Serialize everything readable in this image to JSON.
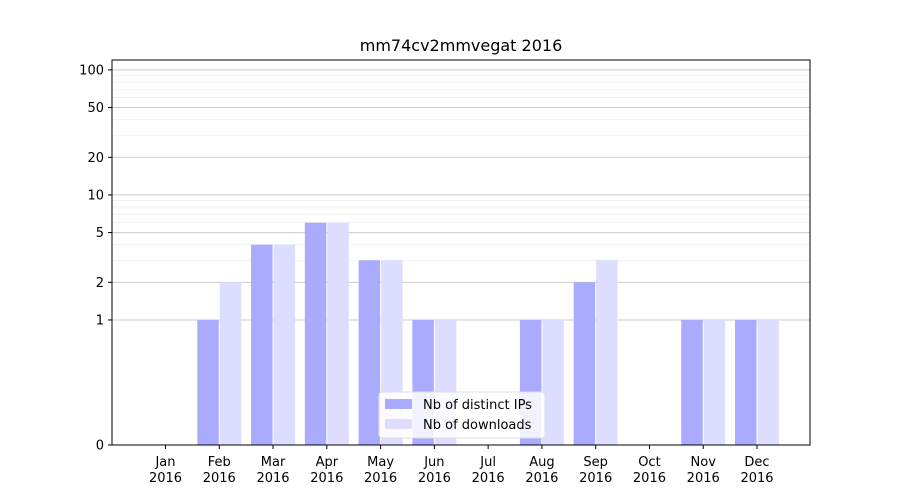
{
  "chart_data": {
    "type": "bar",
    "title": "mm74cv2mmvegat 2016",
    "xlabel": "",
    "ylabel": "",
    "yscale": "symlog",
    "ylim": [
      0,
      120
    ],
    "yticks": [
      0,
      1,
      2,
      5,
      10,
      20,
      50,
      100
    ],
    "grid": true,
    "legend_position": "bottom-center",
    "categories": [
      "Jan\n2016",
      "Feb\n2016",
      "Mar\n2016",
      "Apr\n2016",
      "May\n2016",
      "Jun\n2016",
      "Jul\n2016",
      "Aug\n2016",
      "Sep\n2016",
      "Oct\n2016",
      "Nov\n2016",
      "Dec\n2016"
    ],
    "series": [
      {
        "name": "Nb of distinct IPs",
        "color": "#aaaaff",
        "values": [
          0,
          1,
          4,
          6,
          3,
          1,
          0,
          1,
          2,
          0,
          1,
          1
        ]
      },
      {
        "name": "Nb of downloads",
        "color": "#ddddff",
        "values": [
          0,
          2,
          4,
          6,
          3,
          1,
          0,
          1,
          3,
          0,
          1,
          1
        ]
      }
    ]
  }
}
